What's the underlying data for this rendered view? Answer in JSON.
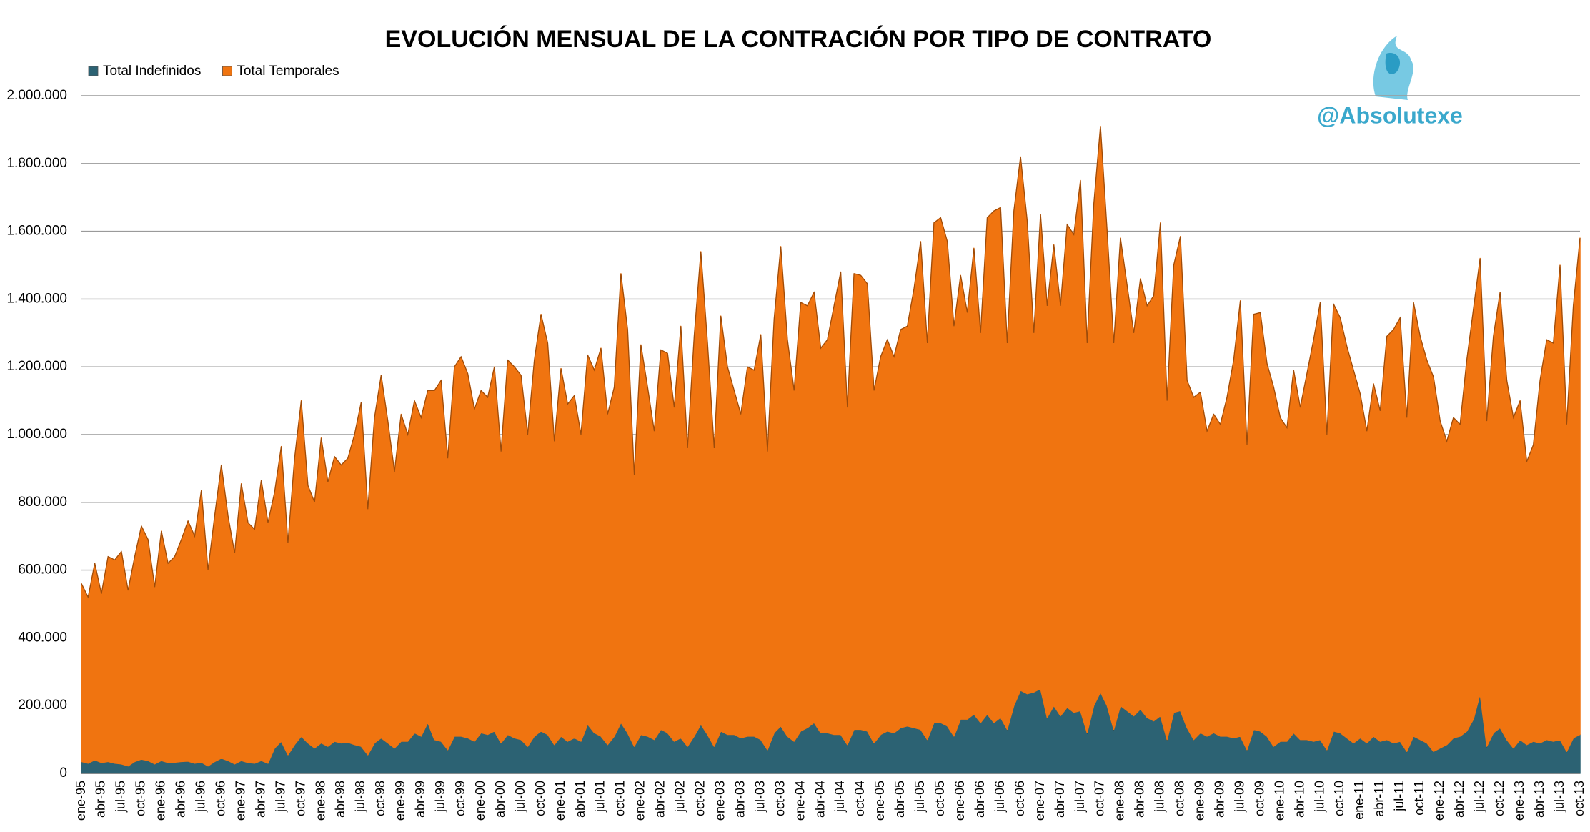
{
  "chart_data": {
    "type": "area",
    "stacked": true,
    "title": "EVOLUCIÓN MENSUAL DE LA CONTRACIÓN POR TIPO DE CONTRATO",
    "watermark": "@Absolutexe",
    "legend": "top-left",
    "grid": true,
    "ylim": [
      0,
      2000000
    ],
    "yticks": [
      0,
      {
        "value": 200000,
        "label": "200.000"
      },
      {
        "value": 400000,
        "label": "400.000"
      },
      {
        "value": 600000,
        "label": "600.000"
      },
      {
        "value": 800000,
        "label": "800.000"
      },
      {
        "value": 1000000,
        "label": "1.000.000"
      },
      {
        "value": 1200000,
        "label": "1.200.000"
      },
      {
        "value": 1400000,
        "label": "1.400.000"
      },
      {
        "value": 1600000,
        "label": "1.600.000"
      },
      {
        "value": 1800000,
        "label": "1.800.000"
      },
      {
        "value": 2000000,
        "label": "2.000.000"
      }
    ],
    "categories": [
      "ene-95",
      null,
      null,
      "abr-95",
      null,
      null,
      "jul-95",
      null,
      null,
      "oct-95",
      null,
      null,
      "ene-96",
      null,
      null,
      "abr-96",
      null,
      null,
      "jul-96",
      null,
      null,
      "oct-96",
      null,
      null,
      "ene-97",
      null,
      null,
      "abr-97",
      null,
      null,
      "jul-97",
      null,
      null,
      "oct-97",
      null,
      null,
      "ene-98",
      null,
      null,
      "abr-98",
      null,
      null,
      "jul-98",
      null,
      null,
      "oct-98",
      null,
      null,
      "ene-99",
      null,
      null,
      "abr-99",
      null,
      null,
      "jul-99",
      null,
      null,
      "oct-99",
      null,
      null,
      "ene-00",
      null,
      null,
      "abr-00",
      null,
      null,
      "jul-00",
      null,
      null,
      "oct-00",
      null,
      null,
      "ene-01",
      null,
      null,
      "abr-01",
      null,
      null,
      "jul-01",
      null,
      null,
      "oct-01",
      null,
      null,
      "ene-02",
      null,
      null,
      "abr-02",
      null,
      null,
      "jul-02",
      null,
      null,
      "oct-02",
      null,
      null,
      "ene-03",
      null,
      null,
      "abr-03",
      null,
      null,
      "jul-03",
      null,
      null,
      "oct-03",
      null,
      null,
      "ene-04",
      null,
      null,
      "abr-04",
      null,
      null,
      "jul-04",
      null,
      null,
      "oct-04",
      null,
      null,
      "ene-05",
      null,
      null,
      "abr-05",
      null,
      null,
      "jul-05",
      null,
      null,
      "oct-05",
      null,
      null,
      "ene-06",
      null,
      null,
      "abr-06",
      null,
      null,
      "jul-06",
      null,
      null,
      "oct-06",
      null,
      null,
      "ene-07",
      null,
      null,
      "abr-07",
      null,
      null,
      "jul-07",
      null,
      null,
      "oct-07",
      null,
      null,
      "ene-08",
      null,
      null,
      "abr-08",
      null,
      null,
      "jul-08",
      null,
      null,
      "oct-08",
      null,
      null,
      "ene-09",
      null,
      null,
      "abr-09",
      null,
      null,
      "jul-09",
      null,
      null,
      "oct-09",
      null,
      null,
      "ene-10",
      null,
      null,
      "abr-10",
      null,
      null,
      "jul-10",
      null,
      null,
      "oct-10",
      null,
      null,
      "ene-11",
      null,
      null,
      "abr-11",
      null,
      null,
      "jul-11",
      null,
      null,
      "oct-11",
      null,
      null,
      "ene-12",
      null,
      null,
      "abr-12",
      null,
      null,
      "jul-12",
      null,
      null,
      "oct-12",
      null,
      null,
      "ene-13",
      null,
      null,
      "abr-13",
      null,
      null,
      "jul-13",
      null,
      null,
      "oct-13"
    ],
    "series": [
      {
        "name": "Total Indefinidos",
        "color": "#2c6273",
        "values": [
          35000,
          30000,
          40000,
          32000,
          35000,
          30000,
          28000,
          22000,
          35000,
          42000,
          38000,
          28000,
          38000,
          32000,
          33000,
          35000,
          36000,
          30000,
          33000,
          22000,
          35000,
          45000,
          38000,
          28000,
          38000,
          32000,
          30000,
          38000,
          30000,
          75000,
          95000,
          55000,
          85000,
          110000,
          90000,
          75000,
          90000,
          80000,
          95000,
          90000,
          92000,
          85000,
          80000,
          55000,
          90000,
          105000,
          90000,
          75000,
          95000,
          95000,
          120000,
          110000,
          150000,
          100000,
          95000,
          70000,
          110000,
          110000,
          105000,
          95000,
          120000,
          115000,
          125000,
          90000,
          115000,
          105000,
          100000,
          80000,
          110000,
          125000,
          115000,
          85000,
          110000,
          95000,
          105000,
          95000,
          145000,
          120000,
          110000,
          85000,
          110000,
          150000,
          120000,
          80000,
          115000,
          110000,
          100000,
          130000,
          120000,
          95000,
          105000,
          80000,
          110000,
          145000,
          115000,
          80000,
          125000,
          115000,
          115000,
          105000,
          110000,
          110000,
          100000,
          70000,
          120000,
          140000,
          110000,
          95000,
          125000,
          135000,
          150000,
          120000,
          120000,
          115000,
          115000,
          85000,
          130000,
          130000,
          125000,
          90000,
          115000,
          125000,
          120000,
          135000,
          140000,
          135000,
          130000,
          100000,
          150000,
          150000,
          140000,
          110000,
          160000,
          160000,
          175000,
          150000,
          175000,
          150000,
          165000,
          130000,
          200000,
          245000,
          235000,
          240000,
          250000,
          165000,
          200000,
          170000,
          195000,
          180000,
          185000,
          120000,
          200000,
          240000,
          200000,
          130000,
          200000,
          185000,
          170000,
          190000,
          165000,
          155000,
          170000,
          100000,
          180000,
          185000,
          135000,
          100000,
          120000,
          110000,
          120000,
          110000,
          110000,
          105000,
          110000,
          70000,
          130000,
          125000,
          110000,
          80000,
          95000,
          95000,
          120000,
          100000,
          100000,
          95000,
          100000,
          70000,
          125000,
          120000,
          105000,
          90000,
          105000,
          90000,
          110000,
          95000,
          100000,
          90000,
          95000,
          65000,
          110000,
          100000,
          90000,
          65000,
          75000,
          85000,
          105000,
          110000,
          125000,
          160000,
          235000,
          80000,
          120000,
          135000,
          100000,
          75000,
          100000,
          85000,
          95000,
          90000,
          100000,
          95000,
          100000,
          65000,
          105000,
          115000
        ]
      },
      {
        "name": "Total Temporales",
        "color": "#f07410",
        "values": [
          525000,
          490000,
          580000,
          498000,
          605000,
          600000,
          627000,
          518000,
          605000,
          688000,
          652000,
          522000,
          677000,
          588000,
          607000,
          655000,
          709000,
          670000,
          802000,
          578000,
          725000,
          865000,
          722000,
          622000,
          817000,
          708000,
          690000,
          827000,
          710000,
          755000,
          870000,
          625000,
          845000,
          990000,
          760000,
          725000,
          900000,
          780000,
          840000,
          820000,
          838000,
          915000,
          1015000,
          725000,
          960000,
          1070000,
          950000,
          815000,
          965000,
          905000,
          980000,
          940000,
          980000,
          1030000,
          1065000,
          860000,
          1090000,
          1120000,
          1075000,
          980000,
          1010000,
          995000,
          1075000,
          860000,
          1105000,
          1095000,
          1075000,
          920000,
          1110000,
          1230000,
          1155000,
          895000,
          1085000,
          995000,
          1010000,
          905000,
          1090000,
          1070000,
          1145000,
          975000,
          1030000,
          1325000,
          1190000,
          800000,
          1150000,
          1030000,
          910000,
          1120000,
          1120000,
          985000,
          1215000,
          880000,
          1180000,
          1395000,
          1155000,
          880000,
          1225000,
          1085000,
          1015000,
          955000,
          1090000,
          1080000,
          1195000,
          880000,
          1220000,
          1415000,
          1170000,
          1035000,
          1265000,
          1245000,
          1270000,
          1135000,
          1160000,
          1265000,
          1365000,
          995000,
          1345000,
          1340000,
          1320000,
          1040000,
          1115000,
          1155000,
          1110000,
          1175000,
          1180000,
          1295000,
          1440000,
          1170000,
          1475000,
          1490000,
          1430000,
          1210000,
          1310000,
          1200000,
          1375000,
          1150000,
          1465000,
          1510000,
          1505000,
          1140000,
          1460000,
          1575000,
          1395000,
          1060000,
          1400000,
          1215000,
          1360000,
          1210000,
          1425000,
          1410000,
          1565000,
          1150000,
          1480000,
          1670000,
          1400000,
          1140000,
          1380000,
          1255000,
          1130000,
          1270000,
          1215000,
          1255000,
          1455000,
          1000000,
          1320000,
          1400000,
          1025000,
          1010000,
          1005000,
          900000,
          940000,
          920000,
          1000000,
          1115000,
          1285000,
          900000,
          1225000,
          1235000,
          1100000,
          1060000,
          955000,
          925000,
          1070000,
          980000,
          1080000,
          1185000,
          1290000,
          930000,
          1260000,
          1225000,
          1155000,
          1100000,
          1015000,
          920000,
          1040000,
          975000,
          1190000,
          1220000,
          1250000,
          985000,
          1280000,
          1190000,
          1130000,
          1105000,
          965000,
          895000,
          945000,
          920000,
          1095000,
          1210000,
          1285000,
          960000,
          1170000,
          1285000,
          1060000,
          975000,
          1000000,
          835000,
          875000,
          1070000,
          1180000,
          1175000,
          1400000,
          965000,
          1275000,
          1465000
        ]
      }
    ]
  }
}
